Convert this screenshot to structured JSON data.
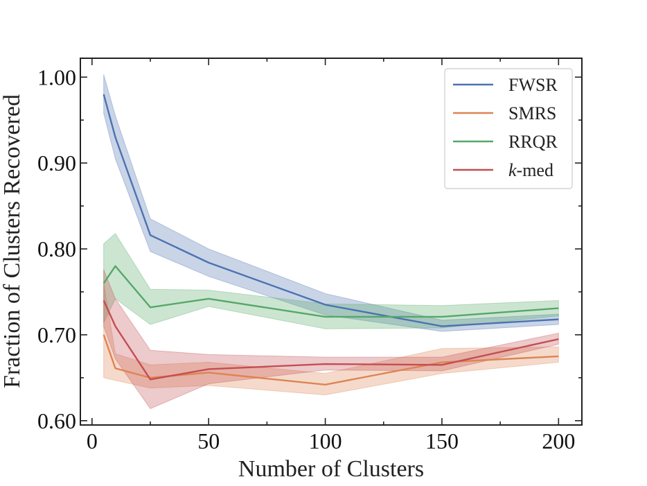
{
  "chart_data": {
    "type": "line",
    "title": "",
    "xlabel": "Number of Clusters",
    "ylabel": "Fraction of Clusters Recovered",
    "xlim": [
      -5,
      210
    ],
    "ylim": [
      0.595,
      1.022
    ],
    "xticks": [
      0,
      50,
      100,
      150,
      200
    ],
    "xtick_labels": [
      "0",
      "50",
      "100",
      "150",
      "200"
    ],
    "yticks": [
      0.6,
      0.7,
      0.8,
      0.9,
      1.0
    ],
    "ytick_labels": [
      "0.60",
      "0.70",
      "0.80",
      "0.90",
      "1.00"
    ],
    "grid": false,
    "legend_position": "top-right",
    "x": [
      5,
      10,
      25,
      50,
      100,
      150,
      200
    ],
    "series": [
      {
        "name": "FWSR",
        "label_prefix": "",
        "label_suffix": "FWSR",
        "color": "#4c72b0",
        "values": [
          0.98,
          0.93,
          0.816,
          0.784,
          0.735,
          0.71,
          0.718
        ],
        "lower": [
          0.958,
          0.905,
          0.797,
          0.768,
          0.723,
          0.704,
          0.712
        ],
        "upper": [
          1.003,
          0.955,
          0.835,
          0.8,
          0.748,
          0.717,
          0.724
        ]
      },
      {
        "name": "SMRS",
        "label_prefix": "",
        "label_suffix": "SMRS",
        "color": "#dd8452",
        "values": [
          0.7,
          0.661,
          0.65,
          0.656,
          0.642,
          0.668,
          0.675
        ],
        "lower": [
          0.65,
          0.647,
          0.638,
          0.641,
          0.63,
          0.655,
          0.668
        ],
        "upper": [
          0.76,
          0.678,
          0.665,
          0.668,
          0.655,
          0.684,
          0.686
        ]
      },
      {
        "name": "RRQR",
        "label_prefix": "",
        "label_suffix": "RRQR",
        "color": "#55a868",
        "values": [
          0.76,
          0.78,
          0.732,
          0.742,
          0.721,
          0.721,
          0.731
        ],
        "lower": [
          0.714,
          0.742,
          0.712,
          0.733,
          0.707,
          0.708,
          0.722
        ],
        "upper": [
          0.806,
          0.818,
          0.753,
          0.752,
          0.736,
          0.734,
          0.74
        ]
      },
      {
        "name": "k-med",
        "label_prefix": "k",
        "label_suffix": "-med",
        "color": "#c44e52",
        "values": [
          0.74,
          0.71,
          0.648,
          0.66,
          0.666,
          0.665,
          0.695
        ],
        "lower": [
          0.71,
          0.672,
          0.614,
          0.643,
          0.659,
          0.658,
          0.689
        ],
        "upper": [
          0.776,
          0.742,
          0.682,
          0.677,
          0.674,
          0.674,
          0.702
        ]
      }
    ]
  }
}
